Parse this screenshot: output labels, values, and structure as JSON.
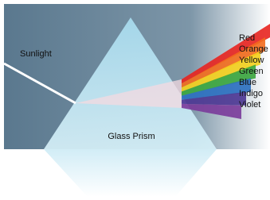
{
  "labels": {
    "light": "Sunlight",
    "prism": "Glass Prism"
  },
  "spectrum": [
    "Red",
    "Orange",
    "Yellow",
    "Green",
    "Blue",
    "Indigo",
    "Violet"
  ]
}
